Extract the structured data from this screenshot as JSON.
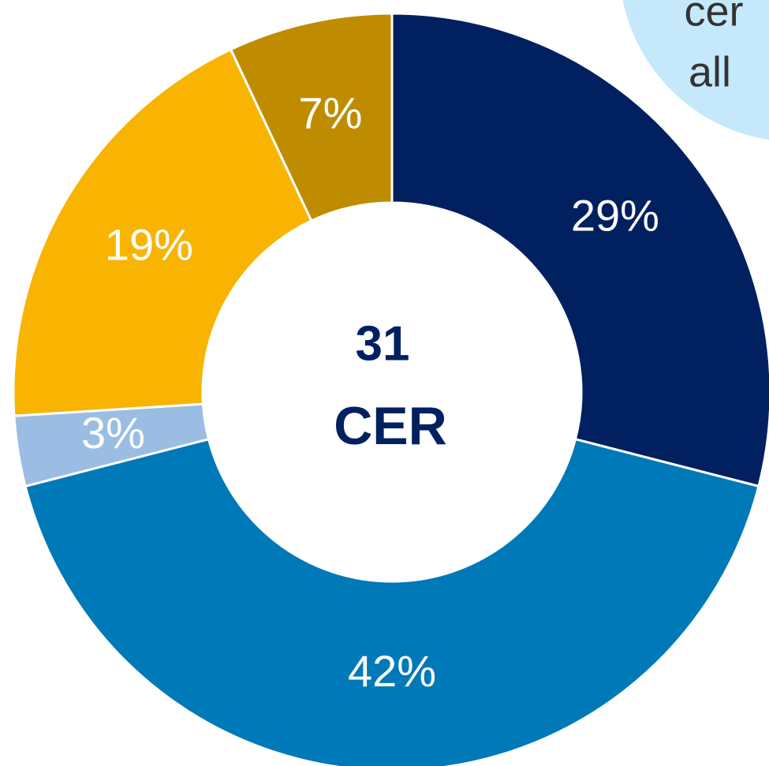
{
  "chart_data": {
    "type": "donut",
    "values": [
      29,
      42,
      3,
      19,
      7
    ],
    "value_labels": [
      "29%",
      "42%",
      "3%",
      "19%",
      "7%"
    ],
    "colors": [
      "#002060",
      "#0079b8",
      "#9bbde3",
      "#f8b400",
      "#bf8c00"
    ],
    "center_text": [
      "31",
      "CER"
    ],
    "annotation": [
      "cer",
      "all"
    ]
  }
}
